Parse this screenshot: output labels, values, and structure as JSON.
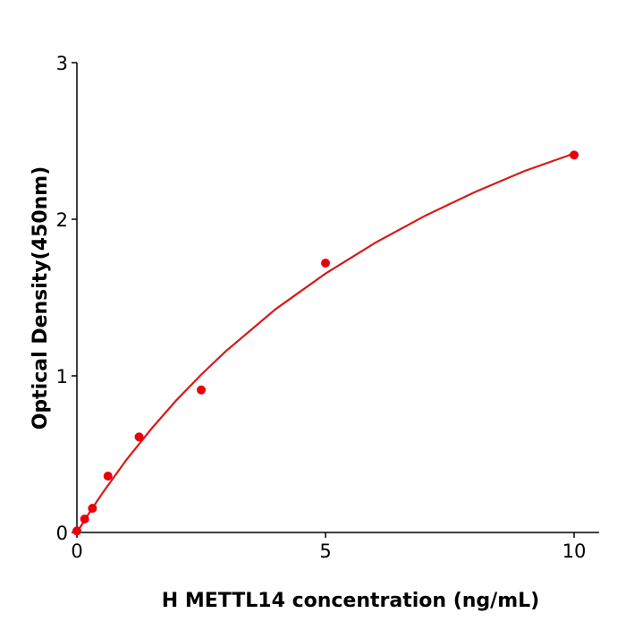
{
  "chart_data": {
    "type": "scatter",
    "title": "",
    "xlabel": "H  METTL14 concentration (ng/mL)",
    "ylabel": "Optical Density(450nm)",
    "xlim": [
      0,
      10.5
    ],
    "ylim": [
      0,
      3
    ],
    "xticks": [
      "0",
      "5",
      "10"
    ],
    "xtick_values": [
      0,
      5,
      10
    ],
    "yticks": [
      "0",
      "1",
      "2",
      "3"
    ],
    "ytick_values": [
      0,
      1,
      2,
      3
    ],
    "grid": false,
    "color": "#e8000b",
    "curve_color": "#d61a1a",
    "points": {
      "x": [
        0,
        0.156,
        0.3125,
        0.625,
        1.25,
        2.5,
        5,
        10
      ],
      "y": [
        0.01,
        0.086,
        0.154,
        0.36,
        0.61,
        0.91,
        1.72,
        2.41
      ]
    },
    "fit_curve": {
      "x": [
        0,
        0.25,
        0.5,
        1,
        1.5,
        2,
        2.5,
        3,
        4,
        5,
        6,
        7,
        8,
        9,
        10
      ],
      "y": [
        0,
        0.126,
        0.245,
        0.466,
        0.663,
        0.844,
        1.008,
        1.159,
        1.427,
        1.653,
        1.85,
        2.022,
        2.173,
        2.308,
        2.42
      ]
    }
  }
}
